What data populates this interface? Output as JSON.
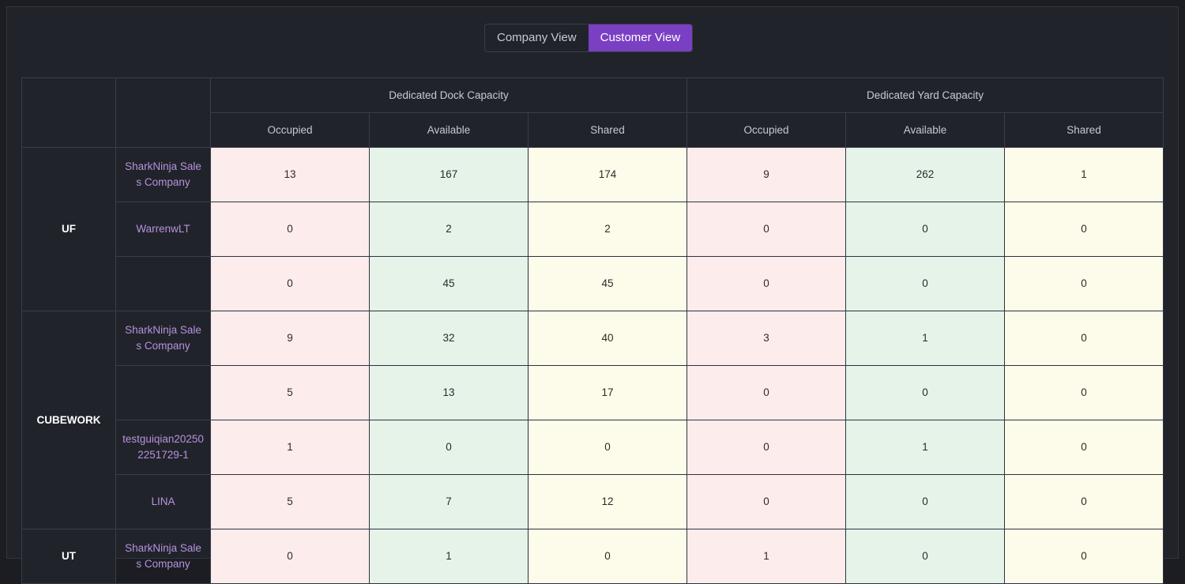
{
  "toggle": {
    "options": [
      "Company View",
      "Customer View"
    ],
    "active": 1
  },
  "table": {
    "groups": [
      "Dedicated Dock Capacity",
      "Dedicated Yard Capacity"
    ],
    "columns": [
      "Occupied",
      "Available",
      "Shared",
      "Occupied",
      "Available",
      "Shared"
    ],
    "warehouses": [
      {
        "name": "UF",
        "rows": [
          {
            "customer": "SharkNinja Sales Company",
            "values": [
              13,
              167,
              174,
              9,
              262,
              1
            ]
          },
          {
            "customer": "WarrenwLT",
            "values": [
              0,
              2,
              2,
              0,
              0,
              0
            ]
          },
          {
            "customer": null,
            "values": [
              0,
              45,
              45,
              0,
              0,
              0
            ]
          }
        ]
      },
      {
        "name": "CUBEWORK",
        "rows": [
          {
            "customer": "SharkNinja Sales Company",
            "values": [
              9,
              32,
              40,
              3,
              1,
              0
            ]
          },
          {
            "customer": null,
            "values": [
              5,
              13,
              17,
              0,
              0,
              0
            ]
          },
          {
            "customer": "testguiqian202502251729-1",
            "values": [
              1,
              0,
              0,
              0,
              1,
              0
            ]
          },
          {
            "customer": "LINA",
            "values": [
              5,
              7,
              12,
              0,
              0,
              0
            ]
          }
        ]
      },
      {
        "name": "UT",
        "rows": [
          {
            "customer": "SharkNinja Sales Company",
            "values": [
              0,
              1,
              0,
              1,
              0,
              0
            ]
          }
        ]
      }
    ]
  }
}
